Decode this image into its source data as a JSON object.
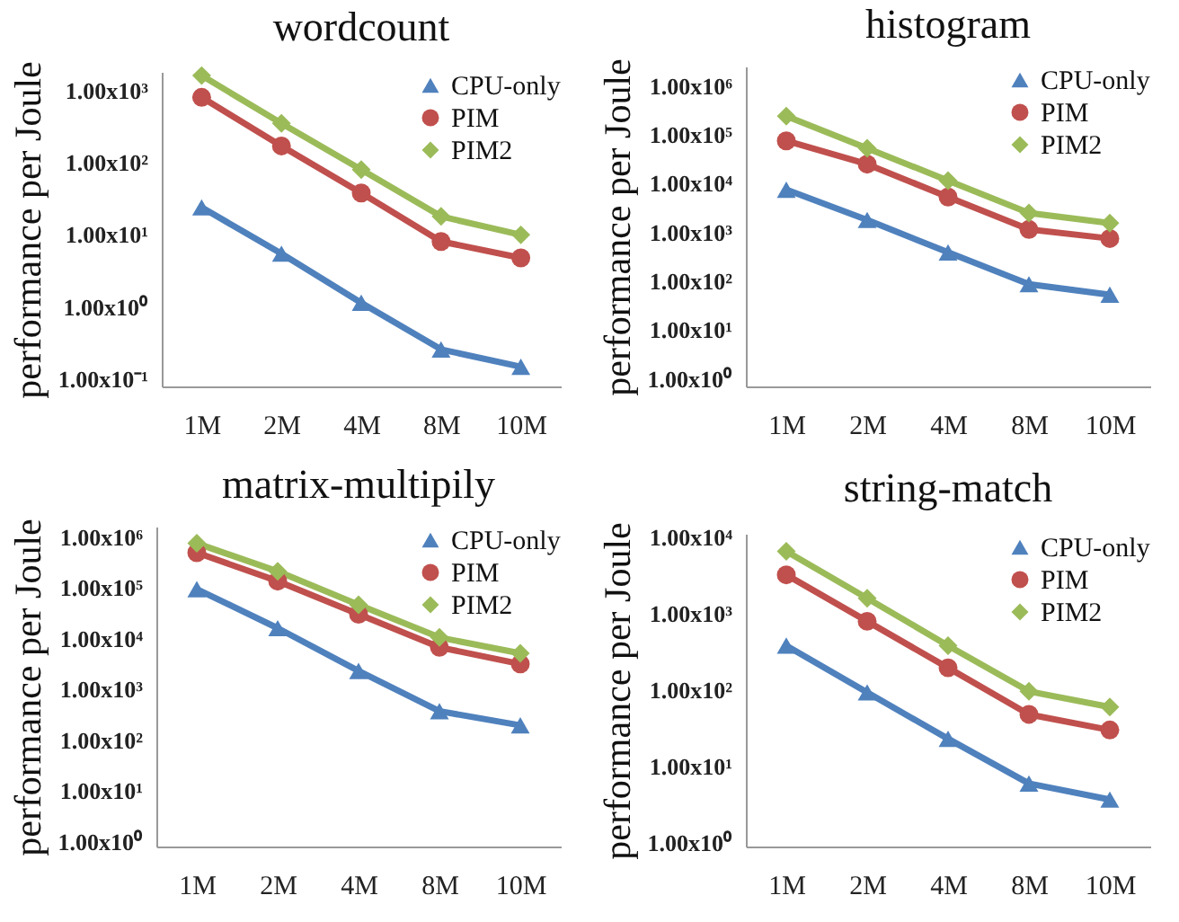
{
  "chart_data": [
    {
      "type": "line",
      "title": "wordcount",
      "ylabel": "performance per Joule",
      "categories": [
        "1M",
        "2M",
        "4M",
        "8M",
        "10M"
      ],
      "log": true,
      "ylim": [
        0.08,
        1800
      ],
      "yticks": [
        {
          "value": 0.1,
          "label": "1.00x10⁻¹"
        },
        {
          "value": 1,
          "label": "1.00x10⁰"
        },
        {
          "value": 10,
          "label": "1.00x10¹"
        },
        {
          "value": 100,
          "label": "1.00x10²"
        },
        {
          "value": 1000,
          "label": "1.00x10³"
        }
      ],
      "legend": "top right",
      "grid": false,
      "series": [
        {
          "name": "CPU-only",
          "color": "#4f81bd",
          "marker": "triangle",
          "values": [
            24,
            5.5,
            1.15,
            0.26,
            0.15
          ]
        },
        {
          "name": "PIM",
          "color": "#c0504d",
          "marker": "circle",
          "values": [
            800,
            170,
            38,
            8.1,
            4.8
          ]
        },
        {
          "name": "PIM2",
          "color": "#9bbb59",
          "marker": "diamond",
          "values": [
            1600,
            350,
            80,
            18,
            10
          ]
        }
      ]
    },
    {
      "type": "line",
      "title": "histogram",
      "ylabel": "performance per Joule",
      "categories": [
        "1M",
        "2M",
        "4M",
        "8M",
        "10M"
      ],
      "log": true,
      "ylim": [
        0.7,
        2500000
      ],
      "yticks": [
        {
          "value": 1,
          "label": "1.00x10⁰"
        },
        {
          "value": 10,
          "label": "1.00x10¹"
        },
        {
          "value": 100,
          "label": "1.00x10²"
        },
        {
          "value": 1000,
          "label": "1.00x10³"
        },
        {
          "value": 10000,
          "label": "1.00x10⁴"
        },
        {
          "value": 100000,
          "label": "1.00x10⁵"
        },
        {
          "value": 1000000,
          "label": "1.00x10⁶"
        }
      ],
      "legend": "top right",
      "grid": false,
      "series": [
        {
          "name": "CPU-only",
          "color": "#4f81bd",
          "marker": "triangle",
          "values": [
            7500,
            1800,
            390,
            87,
            53
          ]
        },
        {
          "name": "PIM",
          "color": "#c0504d",
          "marker": "circle",
          "values": [
            75000,
            25000,
            5300,
            1150,
            750
          ]
        },
        {
          "name": "PIM2",
          "color": "#9bbb59",
          "marker": "diamond",
          "values": [
            240000,
            53000,
            11500,
            2500,
            1550
          ]
        }
      ]
    },
    {
      "type": "line",
      "title": "matrix-multipily",
      "ylabel": "performance per Joule",
      "categories": [
        "1M",
        "2M",
        "4M",
        "8M",
        "10M"
      ],
      "log": true,
      "ylim": [
        0.8,
        1600000
      ],
      "yticks": [
        {
          "value": 1,
          "label": "1.00x10⁰"
        },
        {
          "value": 10,
          "label": "1.00x10¹"
        },
        {
          "value": 100,
          "label": "1.00x10²"
        },
        {
          "value": 1000,
          "label": "1.00x10³"
        },
        {
          "value": 10000,
          "label": "1.00x10⁴"
        },
        {
          "value": 100000,
          "label": "1.00x10⁵"
        },
        {
          "value": 1000000,
          "label": "1.00x10⁶"
        }
      ],
      "legend": "top right",
      "grid": false,
      "series": [
        {
          "name": "CPU-only",
          "color": "#4f81bd",
          "marker": "triangle",
          "values": [
            94000,
            16000,
            2300,
            370,
            195
          ]
        },
        {
          "name": "PIM",
          "color": "#c0504d",
          "marker": "circle",
          "values": [
            490000,
            135000,
            30000,
            6700,
            3150
          ]
        },
        {
          "name": "PIM2",
          "color": "#9bbb59",
          "marker": "diamond",
          "values": [
            750000,
            210000,
            46000,
            10500,
            5100
          ]
        }
      ]
    },
    {
      "type": "line",
      "title": "string-match",
      "ylabel": "performance per Joule",
      "categories": [
        "1M",
        "2M",
        "4M",
        "8M",
        "10M"
      ],
      "log": true,
      "ylim": [
        0.9,
        11000
      ],
      "yticks": [
        {
          "value": 1,
          "label": "1.00x10⁰"
        },
        {
          "value": 10,
          "label": "1.00x10¹"
        },
        {
          "value": 100,
          "label": "1.00x10²"
        },
        {
          "value": 1000,
          "label": "1.00x10³"
        },
        {
          "value": 10000,
          "label": "1.00x10⁴"
        }
      ],
      "legend": "top right",
      "grid": false,
      "series": [
        {
          "name": "CPU-only",
          "color": "#4f81bd",
          "marker": "triangle",
          "values": [
            380,
            93,
            23,
            6,
            3.7
          ]
        },
        {
          "name": "PIM",
          "color": "#c0504d",
          "marker": "circle",
          "values": [
            3200,
            790,
            195,
            48,
            30
          ]
        },
        {
          "name": "PIM2",
          "color": "#9bbb59",
          "marker": "diamond",
          "values": [
            6500,
            1580,
            380,
            96,
            60
          ]
        }
      ]
    }
  ]
}
